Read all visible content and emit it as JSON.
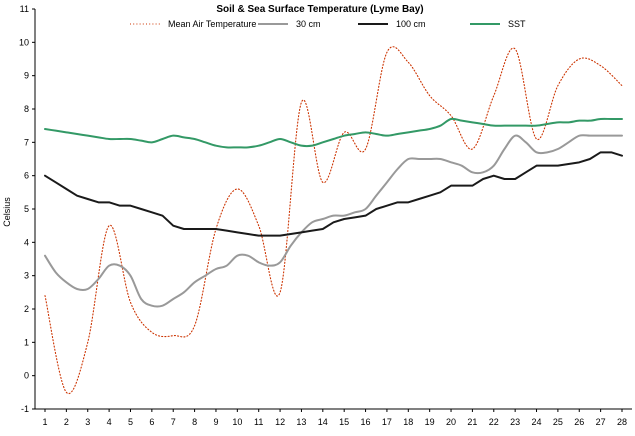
{
  "chart_data": {
    "type": "line",
    "title": "Soil & Sea Surface Temperature (Lyme Bay)",
    "xlabel": "",
    "ylabel": "Celsius",
    "ylim": [
      -1,
      11
    ],
    "xlim": [
      1,
      28
    ],
    "y_ticks": [
      -1,
      0,
      1,
      2,
      3,
      4,
      5,
      6,
      7,
      8,
      9,
      10,
      11
    ],
    "x_ticks": [
      1,
      2,
      3,
      4,
      5,
      6,
      7,
      8,
      9,
      10,
      11,
      12,
      13,
      14,
      15,
      16,
      17,
      18,
      19,
      20,
      21,
      22,
      23,
      24,
      25,
      26,
      27,
      28
    ],
    "grid": false,
    "legend_position": "top",
    "series": [
      {
        "name": "Mean Air Temperature",
        "color": "#cc3300",
        "style": "dotted",
        "smooth": true,
        "x": [
          1,
          2,
          3,
          4,
          5,
          6,
          7,
          8,
          9,
          10,
          11,
          12,
          13,
          14,
          15,
          16,
          17,
          18,
          19,
          20,
          21,
          22,
          23,
          24,
          25,
          26,
          27,
          28
        ],
        "values": [
          2.4,
          -0.5,
          1.0,
          4.5,
          2.2,
          1.3,
          1.2,
          1.5,
          4.4,
          5.6,
          4.5,
          2.5,
          8.2,
          5.8,
          7.3,
          6.8,
          9.7,
          9.4,
          8.4,
          7.8,
          6.8,
          8.4,
          9.8,
          7.1,
          8.7,
          9.5,
          9.3,
          8.7
        ]
      },
      {
        "name": "30 cm",
        "color": "#999999",
        "style": "solid",
        "smooth": true,
        "x": [
          1,
          1.5,
          2,
          2.5,
          3,
          3.5,
          4,
          4.5,
          5,
          5.5,
          6,
          6.5,
          7,
          7.5,
          8,
          8.5,
          9,
          9.5,
          10,
          10.5,
          11,
          11.5,
          12,
          12.5,
          13,
          13.5,
          14,
          14.5,
          15,
          15.5,
          16,
          16.5,
          17,
          17.5,
          18,
          18.5,
          19,
          19.5,
          20,
          20.5,
          21,
          21.5,
          22,
          22.5,
          23,
          23.5,
          24,
          24.5,
          25,
          25.5,
          26,
          26.5,
          27,
          27.5,
          28
        ],
        "values": [
          3.6,
          3.1,
          2.8,
          2.6,
          2.6,
          2.9,
          3.3,
          3.3,
          3.0,
          2.3,
          2.1,
          2.1,
          2.3,
          2.5,
          2.8,
          3.0,
          3.2,
          3.3,
          3.6,
          3.6,
          3.4,
          3.3,
          3.4,
          3.9,
          4.3,
          4.6,
          4.7,
          4.8,
          4.8,
          4.9,
          5.0,
          5.4,
          5.8,
          6.2,
          6.5,
          6.5,
          6.5,
          6.5,
          6.4,
          6.3,
          6.1,
          6.1,
          6.3,
          6.8,
          7.2,
          7.0,
          6.7,
          6.7,
          6.8,
          7.0,
          7.2,
          7.2,
          7.2,
          7.2,
          7.2
        ]
      },
      {
        "name": "100 cm",
        "color": "#1a1a1a",
        "style": "solid",
        "smooth": false,
        "x": [
          1,
          1.5,
          2,
          2.5,
          3,
          3.5,
          4,
          4.5,
          5,
          5.5,
          6,
          6.5,
          7,
          7.5,
          8,
          8.5,
          9,
          9.5,
          10,
          10.5,
          11,
          11.5,
          12,
          12.5,
          13,
          13.5,
          14,
          14.5,
          15,
          15.5,
          16,
          16.5,
          17,
          17.5,
          18,
          18.5,
          19,
          19.5,
          20,
          20.5,
          21,
          21.5,
          22,
          22.5,
          23,
          23.5,
          24,
          24.5,
          25,
          25.5,
          26,
          26.5,
          27,
          27.5,
          28
        ],
        "values": [
          6.0,
          5.8,
          5.6,
          5.4,
          5.3,
          5.2,
          5.2,
          5.1,
          5.1,
          5.0,
          4.9,
          4.8,
          4.5,
          4.4,
          4.4,
          4.4,
          4.4,
          4.35,
          4.3,
          4.25,
          4.2,
          4.2,
          4.2,
          4.25,
          4.3,
          4.35,
          4.4,
          4.6,
          4.7,
          4.75,
          4.8,
          5.0,
          5.1,
          5.2,
          5.2,
          5.3,
          5.4,
          5.5,
          5.7,
          5.7,
          5.7,
          5.9,
          6.0,
          5.9,
          5.9,
          6.1,
          6.3,
          6.3,
          6.3,
          6.35,
          6.4,
          6.5,
          6.7,
          6.7,
          6.6
        ]
      },
      {
        "name": "SST",
        "color": "#339966",
        "style": "solid",
        "smooth": true,
        "x": [
          1,
          1.5,
          2,
          2.5,
          3,
          3.5,
          4,
          4.5,
          5,
          5.5,
          6,
          6.5,
          7,
          7.5,
          8,
          8.5,
          9,
          9.5,
          10,
          10.5,
          11,
          11.5,
          12,
          12.5,
          13,
          13.5,
          14,
          14.5,
          15,
          15.5,
          16,
          16.5,
          17,
          17.5,
          18,
          18.5,
          19,
          19.5,
          20,
          20.5,
          21,
          21.5,
          22,
          22.5,
          23,
          23.5,
          24,
          24.5,
          25,
          25.5,
          26,
          26.5,
          27,
          27.5,
          28
        ],
        "values": [
          7.4,
          7.35,
          7.3,
          7.25,
          7.2,
          7.15,
          7.1,
          7.1,
          7.1,
          7.05,
          7.0,
          7.1,
          7.2,
          7.15,
          7.1,
          7.0,
          6.9,
          6.85,
          6.85,
          6.85,
          6.9,
          7.0,
          7.1,
          7.0,
          6.9,
          6.9,
          7.0,
          7.1,
          7.2,
          7.25,
          7.3,
          7.25,
          7.2,
          7.25,
          7.3,
          7.35,
          7.4,
          7.5,
          7.7,
          7.65,
          7.6,
          7.55,
          7.5,
          7.5,
          7.5,
          7.5,
          7.5,
          7.55,
          7.6,
          7.6,
          7.65,
          7.65,
          7.7,
          7.7,
          7.7
        ]
      }
    ]
  }
}
